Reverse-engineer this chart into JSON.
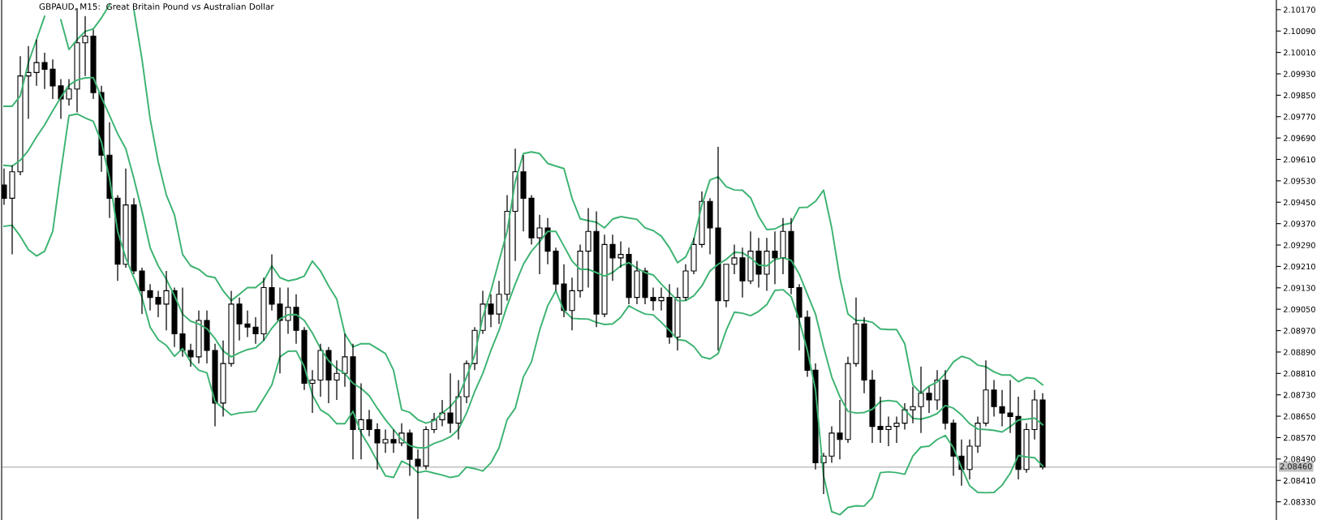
{
  "chart_data": {
    "type": "candlestick",
    "title": "GBPAUD, M15:  Great Britain Pound vs Australian Dollar",
    "categories": [
      null,
      null,
      null,
      null,
      null,
      null,
      null,
      null,
      null,
      null,
      null,
      null,
      null,
      null,
      null,
      null,
      null,
      null,
      null,
      null,
      null,
      null,
      null,
      null,
      null,
      null,
      null,
      null,
      null,
      null,
      null,
      null,
      null,
      null,
      null,
      null,
      null,
      null,
      null,
      null,
      null,
      null,
      null,
      null,
      null,
      null,
      null,
      null,
      null,
      null,
      null,
      null,
      null,
      null,
      null,
      null,
      null,
      null,
      null,
      null,
      null,
      null,
      null,
      null,
      null,
      null,
      null,
      null,
      null,
      null,
      null,
      null,
      null,
      null,
      null,
      null,
      null,
      null,
      null,
      null,
      null,
      null,
      null,
      null,
      null,
      null,
      null,
      null,
      null,
      null,
      null,
      null,
      null,
      null,
      null,
      null,
      null,
      null,
      null,
      null,
      null,
      null,
      null,
      null,
      null,
      null,
      null,
      null,
      null,
      null,
      null,
      null,
      null,
      null,
      null,
      null,
      null,
      null,
      null,
      null,
      null,
      null,
      null,
      null,
      null,
      null,
      null,
      null,
      null
    ],
    "ohlc": [
      [
        2.09514,
        2.09576,
        2.0944,
        2.09465
      ],
      [
        2.09465,
        2.09588,
        2.09255,
        2.09564
      ],
      [
        2.09564,
        2.09996,
        2.09551,
        2.09922
      ],
      [
        2.09922,
        2.10034,
        2.09762,
        2.09935
      ],
      [
        2.09935,
        2.10058,
        2.09885,
        2.09972
      ],
      [
        2.09972,
        2.10009,
        2.09873,
        2.09947
      ],
      [
        2.09947,
        2.09984,
        2.09836,
        2.09885
      ],
      [
        2.09885,
        2.0991,
        2.09762,
        2.09836
      ],
      [
        2.09836,
        2.0991,
        2.09811,
        2.09873
      ],
      [
        2.09873,
        2.10176,
        2.09786,
        2.10046
      ],
      [
        2.10046,
        2.10145,
        2.09922,
        2.10071
      ],
      [
        2.10071,
        2.10095,
        2.09836,
        2.0986
      ],
      [
        2.0986,
        2.09885,
        2.09564,
        2.09626
      ],
      [
        2.09626,
        2.09749,
        2.09391,
        2.09465
      ],
      [
        2.09465,
        2.09477,
        2.09156,
        2.09218
      ],
      [
        2.09218,
        2.09576,
        2.09205,
        2.0944
      ],
      [
        2.0944,
        2.09465,
        2.09181,
        2.09193
      ],
      [
        2.09193,
        2.09205,
        2.09032,
        2.09119
      ],
      [
        2.09119,
        2.09144,
        2.09045,
        2.09094
      ],
      [
        2.09094,
        2.09119,
        2.0902,
        2.09069
      ],
      [
        2.09069,
        2.09193,
        2.08971,
        2.09119
      ],
      [
        2.09119,
        2.09131,
        2.08909,
        2.08958
      ],
      [
        2.08958,
        2.09131,
        2.08872,
        2.08896
      ],
      [
        2.08896,
        2.08921,
        2.08835,
        2.08872
      ],
      [
        2.08872,
        2.09045,
        2.08847,
        2.09008
      ],
      [
        2.09008,
        2.09045,
        2.08847,
        2.08896
      ],
      [
        2.08896,
        2.08921,
        2.08612,
        2.08699
      ],
      [
        2.08699,
        2.08933,
        2.08649,
        2.08847
      ],
      [
        2.08847,
        2.09119,
        2.08835,
        2.09069
      ],
      [
        2.09069,
        2.09094,
        2.08933,
        2.08995
      ],
      [
        2.08995,
        2.09045,
        2.08946,
        2.08983
      ],
      [
        2.08983,
        2.0902,
        2.08921,
        2.08958
      ],
      [
        2.08958,
        2.09168,
        2.08933,
        2.09131
      ],
      [
        2.09131,
        2.09255,
        2.09045,
        2.09069
      ],
      [
        2.09069,
        2.09131,
        2.0881,
        2.09008
      ],
      [
        2.09008,
        2.09131,
        2.08958,
        2.09057
      ],
      [
        2.09057,
        2.09106,
        2.08921,
        2.08971
      ],
      [
        2.08971,
        2.08983,
        2.08748,
        2.08773
      ],
      [
        2.08773,
        2.08822,
        2.08662,
        2.08785
      ],
      [
        2.08785,
        2.08921,
        2.08723,
        2.08896
      ],
      [
        2.08896,
        2.08909,
        2.08699,
        2.08785
      ],
      [
        2.08785,
        2.08859,
        2.08711,
        2.0881
      ],
      [
        2.0881,
        2.08958,
        2.0876,
        2.08872
      ],
      [
        2.08872,
        2.08921,
        2.08489,
        2.086
      ],
      [
        2.086,
        2.08773,
        2.08489,
        2.08637
      ],
      [
        2.08637,
        2.08674,
        2.08575,
        2.086
      ],
      [
        2.086,
        2.08624,
        2.08451,
        2.0855
      ],
      [
        2.0855,
        2.086,
        2.08513,
        2.08563
      ],
      [
        2.08563,
        2.086,
        2.08513,
        2.0855
      ],
      [
        2.0855,
        2.08624,
        2.08538,
        2.08587
      ],
      [
        2.08587,
        2.086,
        2.08427,
        2.08489
      ],
      [
        2.08489,
        2.08526,
        2.08266,
        2.08464
      ],
      [
        2.08464,
        2.08612,
        2.08451,
        2.086
      ],
      [
        2.086,
        2.08662,
        2.08587,
        2.08637
      ],
      [
        2.08637,
        2.08711,
        2.08612,
        2.08662
      ],
      [
        2.08662,
        2.0881,
        2.08587,
        2.08624
      ],
      [
        2.08624,
        2.08785,
        2.08563,
        2.08723
      ],
      [
        2.08723,
        2.08859,
        2.08699,
        2.08847
      ],
      [
        2.08847,
        2.08983,
        2.08822,
        2.08971
      ],
      [
        2.08971,
        2.09119,
        2.08958,
        2.09069
      ],
      [
        2.09069,
        2.09106,
        2.08983,
        2.09032
      ],
      [
        2.09032,
        2.09156,
        2.08995,
        2.09106
      ],
      [
        2.09106,
        2.09477,
        2.09082,
        2.09416
      ],
      [
        2.09416,
        2.0965,
        2.0923,
        2.09564
      ],
      [
        2.09564,
        2.09626,
        2.09341,
        2.09465
      ],
      [
        2.09465,
        2.09477,
        2.09292,
        2.09317
      ],
      [
        2.09317,
        2.09403,
        2.09181,
        2.09354
      ],
      [
        2.09354,
        2.09391,
        2.09218,
        2.09267
      ],
      [
        2.09267,
        2.0928,
        2.09119,
        2.09144
      ],
      [
        2.09144,
        2.09218,
        2.0902,
        2.09045
      ],
      [
        2.09045,
        2.09168,
        2.08971,
        2.09119
      ],
      [
        2.09119,
        2.09292,
        2.09094,
        2.09267
      ],
      [
        2.09267,
        2.09428,
        2.09131,
        2.09341
      ],
      [
        2.09341,
        2.09416,
        2.08983,
        2.09032
      ],
      [
        2.09032,
        2.09329,
        2.0902,
        2.09292
      ],
      [
        2.09292,
        2.09329,
        2.09156,
        2.09242
      ],
      [
        2.09242,
        2.09304,
        2.09205,
        2.09255
      ],
      [
        2.09255,
        2.0928,
        2.09069,
        2.09094
      ],
      [
        2.09094,
        2.0923,
        2.09069,
        2.09193
      ],
      [
        2.09193,
        2.09205,
        2.09069,
        2.09094
      ],
      [
        2.09094,
        2.09131,
        2.09045,
        2.09082
      ],
      [
        2.09082,
        2.09131,
        2.09045,
        2.09094
      ],
      [
        2.09094,
        2.09144,
        2.08921,
        2.08946
      ],
      [
        2.08946,
        2.09131,
        2.08896,
        2.09094
      ],
      [
        2.09094,
        2.09218,
        2.09082,
        2.09193
      ],
      [
        2.09193,
        2.09317,
        2.09181,
        2.09292
      ],
      [
        2.09292,
        2.0949,
        2.0928,
        2.09453
      ],
      [
        2.09453,
        2.09465,
        2.09255,
        2.09354
      ],
      [
        2.09354,
        2.09657,
        2.08896,
        2.09082
      ],
      [
        2.09082,
        2.09218,
        2.09057,
        2.09218
      ],
      [
        2.09218,
        2.09292,
        2.09181,
        2.09242
      ],
      [
        2.09242,
        2.0928,
        2.09094,
        2.09156
      ],
      [
        2.09156,
        2.09341,
        2.09144,
        2.09267
      ],
      [
        2.09267,
        2.09317,
        2.09131,
        2.09181
      ],
      [
        2.09181,
        2.09317,
        2.09119,
        2.09267
      ],
      [
        2.09267,
        2.09341,
        2.09144,
        2.09242
      ],
      [
        2.09242,
        2.09391,
        2.09181,
        2.09341
      ],
      [
        2.09341,
        2.09391,
        2.09106,
        2.09131
      ],
      [
        2.09131,
        2.09144,
        2.08896,
        2.0902
      ],
      [
        2.0902,
        2.09045,
        2.08797,
        2.08822
      ],
      [
        2.08822,
        2.08847,
        2.08451,
        2.08476
      ],
      [
        2.08476,
        2.08513,
        2.08359,
        2.08501
      ],
      [
        2.08501,
        2.08612,
        2.08476,
        2.08587
      ],
      [
        2.08587,
        2.08711,
        2.08489,
        2.08563
      ],
      [
        2.08563,
        2.08872,
        2.0855,
        2.08847
      ],
      [
        2.08847,
        2.09094,
        2.08835,
        2.08995
      ],
      [
        2.08995,
        2.0902,
        2.08736,
        2.08785
      ],
      [
        2.08785,
        2.08822,
        2.0855,
        2.08612
      ],
      [
        2.08612,
        2.08723,
        2.0855,
        2.086
      ],
      [
        2.086,
        2.08649,
        2.08538,
        2.08612
      ],
      [
        2.08612,
        2.08649,
        2.0855,
        2.08624
      ],
      [
        2.08624,
        2.08699,
        2.086,
        2.08674
      ],
      [
        2.08674,
        2.0876,
        2.08624,
        2.08686
      ],
      [
        2.08686,
        2.08835,
        2.08587,
        2.08736
      ],
      [
        2.08736,
        2.0876,
        2.08662,
        2.08711
      ],
      [
        2.08711,
        2.08822,
        2.08674,
        2.08785
      ],
      [
        2.08785,
        2.08822,
        2.086,
        2.08624
      ],
      [
        2.08624,
        2.08637,
        2.08427,
        2.08501
      ],
      [
        2.08501,
        2.08563,
        2.0839,
        2.08451
      ],
      [
        2.08451,
        2.08563,
        2.08414,
        2.08538
      ],
      [
        2.08538,
        2.08649,
        2.08513,
        2.08624
      ],
      [
        2.08624,
        2.08859,
        2.08612,
        2.08748
      ],
      [
        2.08748,
        2.08785,
        2.08649,
        2.08686
      ],
      [
        2.08686,
        2.08748,
        2.08612,
        2.08662
      ],
      [
        2.08662,
        2.08785,
        2.08587,
        2.08649
      ],
      [
        2.08649,
        2.08723,
        2.08414,
        2.08451
      ],
      [
        2.08451,
        2.08624,
        2.08439,
        2.086
      ],
      [
        2.086,
        2.08748,
        2.08563,
        2.08711
      ],
      [
        2.08711,
        2.08736,
        2.08451,
        2.0846
      ]
    ],
    "series": [
      {
        "type": "line",
        "color": "#3cb371",
        "values": [
          2.09809,
          2.09809,
          2.09848,
          2.09972,
          2.10058,
          2.10145,
          null,
          2.10132,
          2.10021,
          2.10058,
          2.10089,
          2.10098,
          2.10139,
          2.10188,
          null,
          null,
          2.10169,
          2.09984,
          2.09762,
          2.09601,
          2.09477,
          2.09403,
          2.09255,
          2.09212,
          2.09199,
          2.09174,
          2.09168,
          2.09119,
          2.09082,
          2.09106,
          2.09131,
          2.09131,
          2.09156,
          2.09212,
          2.09168,
          2.09156,
          2.09162,
          2.09174,
          2.0923,
          2.09193,
          2.09137,
          2.09088,
          2.08958,
          2.08909,
          2.08921,
          2.08921,
          2.08903,
          2.08884,
          2.08822,
          2.08674,
          2.08664,
          2.08637,
          2.08624,
          2.08634,
          2.08662,
          2.08686,
          2.08723,
          2.08797,
          2.08878,
          2.0902,
          2.09119,
          2.0923,
          2.09341,
          2.09527,
          2.09632,
          2.09638,
          2.09632,
          2.09595,
          2.09585,
          2.09576,
          2.09465,
          2.09388,
          2.09381,
          2.09375,
          2.09354,
          2.09387,
          2.09396,
          2.09391,
          2.09386,
          2.09354,
          2.09344,
          2.09323,
          2.0928,
          2.09224,
          2.09245,
          2.0931,
          2.0944,
          2.09533,
          2.09545,
          2.09508,
          2.09496,
          2.09495,
          2.09467,
          2.09397,
          2.09348,
          2.0935,
          2.09366,
          2.09372,
          2.0943,
          2.09431,
          2.09453,
          2.09495,
          2.09354,
          2.09168,
          2.09032,
          2.09008,
          2.09008,
          2.09001,
          2.08976,
          2.08974,
          2.08974,
          2.08921,
          2.08767,
          2.08736,
          2.08763,
          2.08778,
          2.0881,
          2.08853,
          2.08874,
          2.08865,
          2.08841,
          2.08835,
          2.08816,
          2.08804,
          2.08804,
          2.08779,
          2.08794,
          2.08791,
          2.08767
        ]
      },
      {
        "type": "line",
        "color": "#3cb371",
        "values": [
          2.09588,
          2.09585,
          2.09607,
          2.09644,
          2.09694,
          2.09739,
          2.09792,
          2.09842,
          2.09888,
          2.09907,
          2.09915,
          2.09916,
          2.09842,
          2.09774,
          2.09706,
          2.0965,
          2.09539,
          2.09416,
          2.0928,
          2.09212,
          2.09162,
          2.091,
          2.09032,
          2.09005,
          2.08995,
          2.08977,
          2.0894,
          2.08894,
          2.08872,
          2.08887,
          2.08899,
          2.08906,
          2.08933,
          2.08979,
          2.09014,
          2.09029,
          2.0903,
          2.09008,
          2.08961,
          2.08903,
          2.08857,
          2.08828,
          2.0881,
          2.08773,
          2.08754,
          2.08727,
          2.0868,
          2.08637,
          2.086,
          2.08563,
          2.0854,
          2.08532,
          2.08532,
          2.08548,
          2.08559,
          2.08573,
          2.086,
          2.08662,
          2.08742,
          2.0881,
          2.08896,
          2.08971,
          2.09063,
          2.09144,
          2.09218,
          2.09267,
          2.09302,
          2.09341,
          2.09341,
          2.09286,
          2.0923,
          2.09199,
          2.09199,
          2.09187,
          2.09174,
          2.09187,
          2.09212,
          2.09224,
          2.09203,
          2.09187,
          2.09178,
          2.09144,
          2.09113,
          2.09082,
          2.09082,
          2.091,
          2.09137,
          2.09193,
          2.09218,
          2.09236,
          2.09263,
          2.09261,
          2.09242,
          2.09215,
          2.09212,
          2.09236,
          2.09242,
          2.09233,
          2.09181,
          2.09106,
          2.09032,
          2.08909,
          2.08797,
          2.08723,
          2.08668,
          2.08662,
          2.08664,
          2.08676,
          2.08705,
          2.08709,
          2.08705,
          2.08674,
          2.08642,
          2.08639,
          2.08647,
          2.0866,
          2.0869,
          2.0868,
          2.08655,
          2.08622,
          2.08602,
          2.086,
          2.08597,
          2.08591,
          2.08611,
          2.08636,
          2.08639,
          2.08643,
          2.08618
        ]
      },
      {
        "type": "line",
        "color": "#3cb371",
        "values": [
          2.0936,
          2.09364,
          2.09323,
          2.09273,
          2.09249,
          2.09267,
          2.09341,
          2.09564,
          2.09774,
          2.0978,
          2.09765,
          2.09752,
          2.09675,
          2.09539,
          2.09341,
          2.09242,
          2.09168,
          2.09094,
          2.08983,
          2.08936,
          2.08915,
          2.08874,
          2.08903,
          2.08853,
          2.08822,
          2.08812,
          2.08705,
          2.0868,
          2.08655,
          2.08662,
          2.08665,
          2.08668,
          2.08717,
          2.08767,
          2.08872,
          2.08893,
          2.08894,
          2.08835,
          2.0873,
          2.08674,
          2.08655,
          2.08622,
          2.08622,
          2.08668,
          2.08587,
          2.08538,
          2.08482,
          2.08427,
          2.08421,
          2.08482,
          2.08467,
          2.08439,
          2.08445,
          2.08437,
          2.0843,
          2.08421,
          2.08427,
          2.0846,
          2.08454,
          2.08445,
          2.08476,
          2.08532,
          2.08637,
          2.0868,
          2.08797,
          2.08853,
          2.08971,
          2.09063,
          2.09119,
          2.09045,
          2.09016,
          2.09014,
          2.09013,
          2.09001,
          2.08993,
          2.08995,
          2.0902,
          2.09063,
          2.09046,
          2.09032,
          2.09029,
          2.09001,
          2.08971,
          2.08937,
          2.08932,
          2.08911,
          2.08872,
          2.08864,
          2.08884,
          2.08971,
          2.09039,
          2.09035,
          2.09026,
          2.09042,
          2.09067,
          2.0912,
          2.09123,
          2.09097,
          2.09008,
          2.08896,
          2.08748,
          2.08427,
          2.08293,
          2.08282,
          2.08309,
          2.08315,
          2.08314,
          2.08346,
          2.08439,
          2.08442,
          2.08439,
          2.08433,
          2.08501,
          2.08535,
          2.08538,
          2.08563,
          2.08578,
          2.08532,
          2.08458,
          2.0839,
          2.08365,
          2.08364,
          2.08365,
          2.08392,
          2.08437,
          2.08503,
          2.08498,
          2.08495,
          2.08464
        ]
      }
    ],
    "ylim": [
      2.08262,
      2.10206
    ],
    "yticks": [
      {
        "value": 2.0833,
        "label": "2.08330"
      },
      {
        "value": 2.0841,
        "label": "2.08410"
      },
      {
        "value": 2.0849,
        "label": "2.08490"
      },
      {
        "value": 2.0857,
        "label": "2.08570"
      },
      {
        "value": 2.0865,
        "label": "2.08650"
      },
      {
        "value": 2.0873,
        "label": "2.08730"
      },
      {
        "value": 2.0881,
        "label": "2.08810"
      },
      {
        "value": 2.0889,
        "label": "2.08890"
      },
      {
        "value": 2.0897,
        "label": "2.08970"
      },
      {
        "value": 2.0905,
        "label": "2.09050"
      },
      {
        "value": 2.0913,
        "label": "2.09130"
      },
      {
        "value": 2.0921,
        "label": "2.09210"
      },
      {
        "value": 2.0929,
        "label": "2.09290"
      },
      {
        "value": 2.0937,
        "label": "2.09370"
      },
      {
        "value": 2.0945,
        "label": "2.09450"
      },
      {
        "value": 2.0953,
        "label": "2.09530"
      },
      {
        "value": 2.0961,
        "label": "2.09610"
      },
      {
        "value": 2.0969,
        "label": "2.09690"
      },
      {
        "value": 2.0977,
        "label": "2.09770"
      },
      {
        "value": 2.0985,
        "label": "2.09850"
      },
      {
        "value": 2.0993,
        "label": "2.09930"
      },
      {
        "value": 2.1001,
        "label": "2.10010"
      },
      {
        "value": 2.1009,
        "label": "2.10090"
      },
      {
        "value": 2.1017,
        "label": "2.10170"
      }
    ],
    "ref_lines": [
      {
        "axis": "y",
        "value": 2.0846,
        "label": "2.08460",
        "color": "#c0c0c0"
      }
    ],
    "tick_labels": "y"
  }
}
